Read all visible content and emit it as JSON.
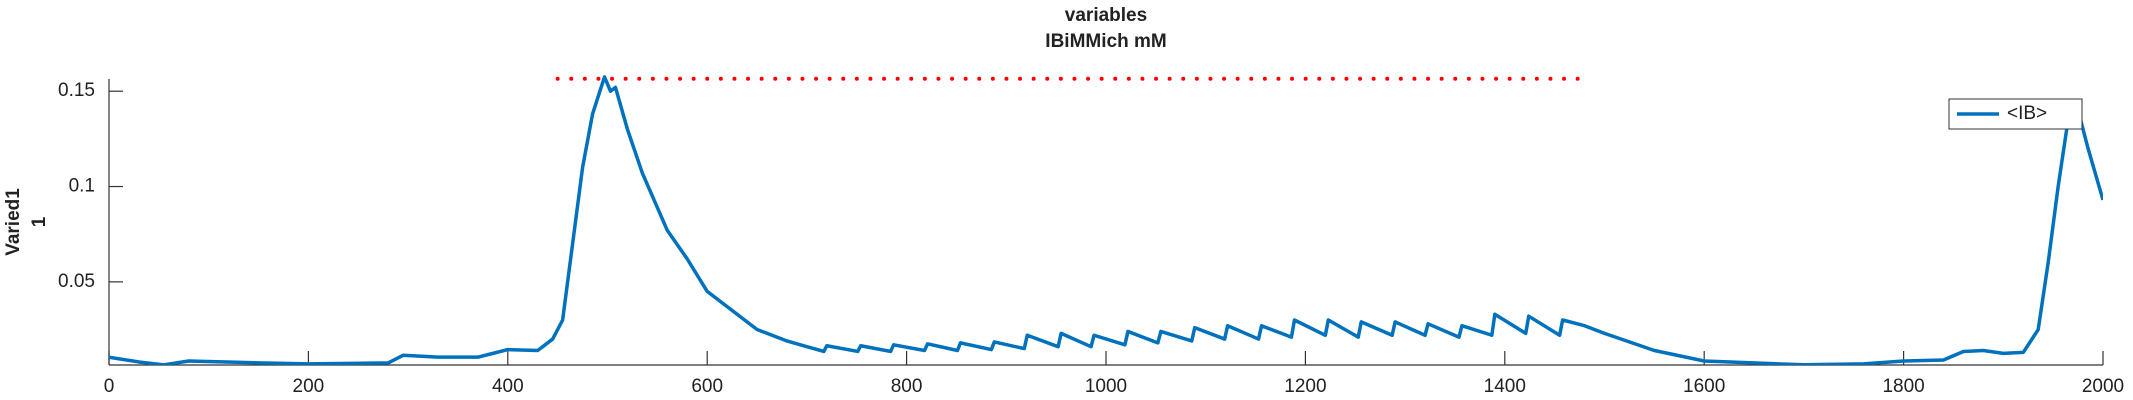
{
  "chart_data": {
    "type": "line",
    "title": [
      "variables",
      "IBiMMich mM"
    ],
    "ylabel": [
      "Varied1",
      "1"
    ],
    "x": [
      0,
      30,
      55,
      80,
      150,
      200,
      280,
      295,
      330,
      370,
      385,
      400,
      430,
      445,
      455,
      465,
      475,
      485,
      497,
      503,
      508,
      520,
      535,
      560,
      580,
      600,
      620,
      650,
      680,
      700,
      717,
      720,
      751,
      754,
      784,
      787,
      818,
      821,
      851,
      854,
      885,
      888,
      918,
      921,
      952,
      955,
      985,
      988,
      1019,
      1022,
      1052,
      1055,
      1086,
      1089,
      1119,
      1122,
      1153,
      1156,
      1186,
      1189,
      1220,
      1223,
      1253,
      1256,
      1287,
      1290,
      1320,
      1323,
      1354,
      1357,
      1387,
      1390,
      1421,
      1424,
      1455,
      1458,
      1480,
      1500,
      1550,
      1600,
      1700,
      1760,
      1800,
      1840,
      1860,
      1880,
      1900,
      1920,
      1935,
      1945,
      1955,
      1965,
      1975,
      1985,
      2000
    ],
    "series": [
      {
        "name": "<IB>",
        "color": "#0072bd",
        "values": [
          0.0105,
          0.008,
          0.0065,
          0.0085,
          0.0075,
          0.007,
          0.0075,
          0.0115,
          0.0105,
          0.0105,
          0.0125,
          0.0145,
          0.014,
          0.02,
          0.03,
          0.07,
          0.11,
          0.138,
          0.1575,
          0.15,
          0.152,
          0.13,
          0.107,
          0.077,
          0.062,
          0.045,
          0.037,
          0.025,
          0.019,
          0.016,
          0.0135,
          0.0165,
          0.0135,
          0.0165,
          0.0135,
          0.017,
          0.014,
          0.0175,
          0.014,
          0.018,
          0.0145,
          0.0185,
          0.015,
          0.022,
          0.016,
          0.023,
          0.016,
          0.022,
          0.017,
          0.024,
          0.018,
          0.024,
          0.019,
          0.026,
          0.02,
          0.027,
          0.02,
          0.027,
          0.021,
          0.03,
          0.022,
          0.03,
          0.021,
          0.029,
          0.022,
          0.029,
          0.022,
          0.028,
          0.021,
          0.027,
          0.022,
          0.033,
          0.023,
          0.032,
          0.022,
          0.03,
          0.027,
          0.023,
          0.014,
          0.0085,
          0.0065,
          0.007,
          0.0085,
          0.009,
          0.0135,
          0.014,
          0.0125,
          0.013,
          0.025,
          0.06,
          0.1,
          0.135,
          0.14,
          0.12,
          0.093
        ]
      }
    ],
    "reference_line": {
      "x": [
        450,
        1480
      ],
      "values": [
        0.1565,
        0.1565
      ],
      "color": "#ff0000"
    },
    "xlim": [
      0,
      2000
    ],
    "xticks": [
      0,
      200,
      400,
      600,
      800,
      1000,
      1200,
      1400,
      1600,
      1800,
      2000
    ],
    "ylim": [
      0.0064,
      0.1564
    ],
    "yticks": [
      0.05,
      0.1,
      0.15
    ],
    "legend": "upper right"
  }
}
